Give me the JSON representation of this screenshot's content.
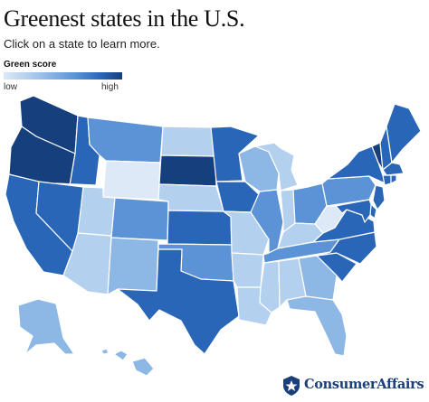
{
  "header": {
    "title": "Greenest states in the U.S.",
    "subtitle": "Click on a state to learn more."
  },
  "legend": {
    "title": "Green score",
    "low_label": "low",
    "high_label": "high",
    "gradient": [
      "#dde9f7",
      "#9ec2ea",
      "#5b93d6",
      "#2a66b8",
      "#163f7d"
    ]
  },
  "colors": {
    "level_1": "#dde9f7",
    "level_2": "#b4d0ef",
    "level_3": "#8db7e5",
    "level_4": "#5b93d6",
    "level_5": "#2a66b8",
    "level_6": "#163f7d",
    "border": "#ffffff",
    "brand": "#1b3f7a"
  },
  "states": [
    {
      "id": "WA",
      "level": 6
    },
    {
      "id": "OR",
      "level": 6
    },
    {
      "id": "CA",
      "level": 5
    },
    {
      "id": "ID",
      "level": 5
    },
    {
      "id": "NV",
      "level": 5
    },
    {
      "id": "MT",
      "level": 4
    },
    {
      "id": "WY",
      "level": 1
    },
    {
      "id": "UT",
      "level": 2
    },
    {
      "id": "AZ",
      "level": 2
    },
    {
      "id": "CO",
      "level": 4
    },
    {
      "id": "NM",
      "level": 3
    },
    {
      "id": "ND",
      "level": 2
    },
    {
      "id": "SD",
      "level": 6
    },
    {
      "id": "NE",
      "level": 2
    },
    {
      "id": "KS",
      "level": 5
    },
    {
      "id": "OK",
      "level": 4
    },
    {
      "id": "TX",
      "level": 5
    },
    {
      "id": "MN",
      "level": 5
    },
    {
      "id": "IA",
      "level": 5
    },
    {
      "id": "MO",
      "level": 2
    },
    {
      "id": "AR",
      "level": 2
    },
    {
      "id": "LA",
      "level": 2
    },
    {
      "id": "WI",
      "level": 3
    },
    {
      "id": "IL",
      "level": 4
    },
    {
      "id": "MI",
      "level": 2
    },
    {
      "id": "IN",
      "level": 2
    },
    {
      "id": "OH",
      "level": 4
    },
    {
      "id": "KY",
      "level": 2
    },
    {
      "id": "TN",
      "level": 4
    },
    {
      "id": "MS",
      "level": 2
    },
    {
      "id": "AL",
      "level": 2
    },
    {
      "id": "GA",
      "level": 3
    },
    {
      "id": "FL",
      "level": 3
    },
    {
      "id": "SC",
      "level": 5
    },
    {
      "id": "NC",
      "level": 5
    },
    {
      "id": "VA",
      "level": 5
    },
    {
      "id": "WV",
      "level": 1
    },
    {
      "id": "PA",
      "level": 4
    },
    {
      "id": "NY",
      "level": 5
    },
    {
      "id": "VT",
      "level": 6
    },
    {
      "id": "NH",
      "level": 5
    },
    {
      "id": "ME",
      "level": 5
    },
    {
      "id": "MA",
      "level": 5
    },
    {
      "id": "CT",
      "level": 5
    },
    {
      "id": "RI",
      "level": 5
    },
    {
      "id": "NJ",
      "level": 5
    },
    {
      "id": "DE",
      "level": 5
    },
    {
      "id": "MD",
      "level": 5
    },
    {
      "id": "AK",
      "level": 3
    },
    {
      "id": "HI",
      "level": 3
    }
  ],
  "brand": {
    "name": "ConsumerAffairs",
    "icon": "star-shield-icon"
  }
}
